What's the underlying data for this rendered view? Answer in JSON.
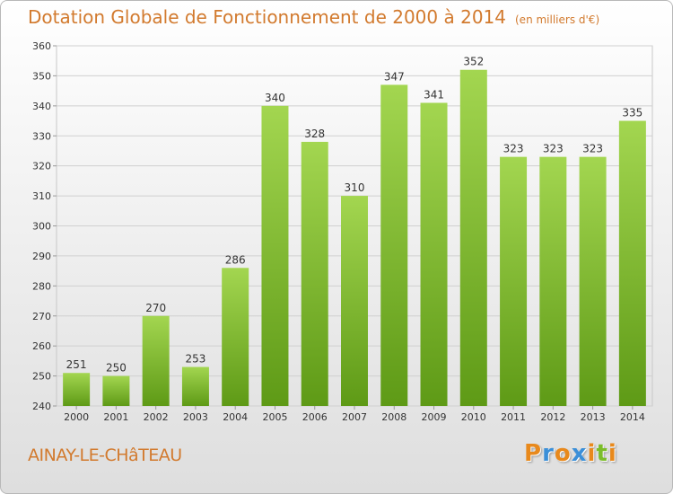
{
  "title": "Dotation Globale de Fonctionnement de 2000 à 2014",
  "subtitle": "(en milliers d'€)",
  "commune": "AINAY-LE-CHâTEAU",
  "logo": {
    "letters": [
      "P",
      "r",
      "o",
      "x",
      "i",
      "t",
      "i"
    ],
    "colors": [
      "#e8891c",
      "#3b8fd8",
      "#e8891c",
      "#3b8fd8",
      "#e8891c",
      "#7bbd2a",
      "#e8891c"
    ]
  },
  "colors": {
    "bar_light": "#9cd14a",
    "bar_dark": "#5e9a16",
    "text": "#d27a2e"
  },
  "chart_data": {
    "type": "bar",
    "categories": [
      "2000",
      "2001",
      "2002",
      "2003",
      "2004",
      "2005",
      "2006",
      "2007",
      "2008",
      "2009",
      "2010",
      "2011",
      "2012",
      "2013",
      "2014"
    ],
    "values": [
      251,
      250,
      270,
      253,
      286,
      340,
      328,
      310,
      347,
      341,
      352,
      323,
      323,
      323,
      335
    ],
    "data_labels": [
      "251",
      "250",
      "270",
      "253",
      "286",
      "340",
      "328",
      "310",
      "347",
      "341",
      "352",
      "323",
      "323",
      "323",
      "335"
    ],
    "ylim": [
      240,
      360
    ],
    "yticks": [
      "240",
      "250",
      "260",
      "270",
      "280",
      "290",
      "300",
      "310",
      "320",
      "330",
      "340",
      "350",
      "360"
    ],
    "grid": true,
    "xlabel": "",
    "ylabel": ""
  }
}
